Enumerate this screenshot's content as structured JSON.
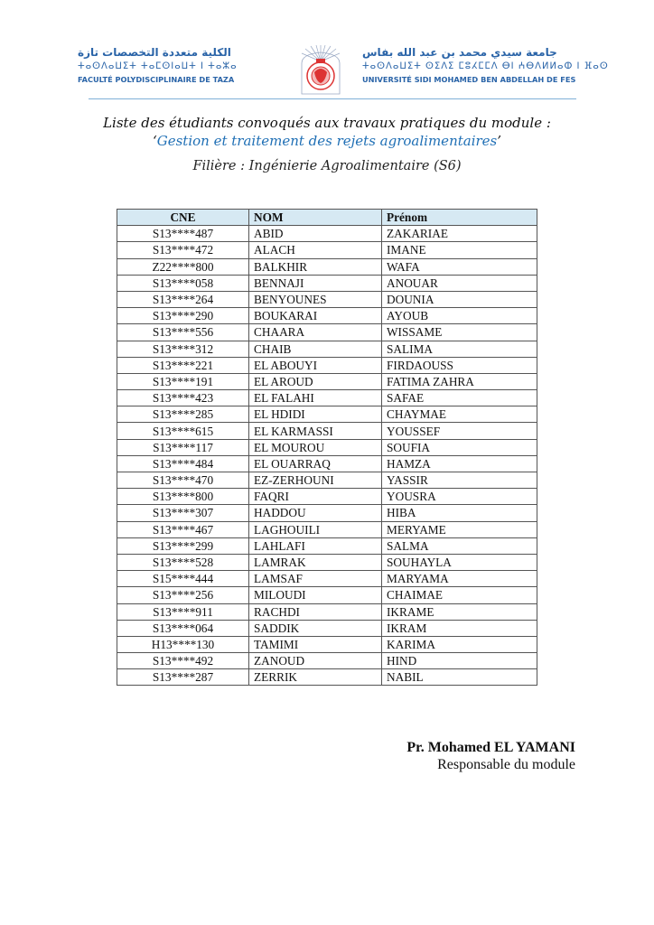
{
  "letterhead": {
    "left_arabic": "الكلية متعددة التخصصات تازة",
    "left_tifinagh": "ⵜⴰⵙⴷⴰⵡⵉⵜ ⵜⴰⵎⵙⵏⴰⵡⵜ ⵏ ⵜⴰⵣⴰ",
    "left_french": "FACULTÉ POLYDISCIPLINAIRE DE TAZA",
    "right_arabic": "جامعة سيدي محمد بن عبد الله بفاس",
    "right_tifinagh": "ⵜⴰⵙⴷⴰⵡⵉⵜ ⵙⵉⴷⵉ ⵎⵓⵃⵎⵎⴷ ⴱⵏ ⵄⴱⴷⵍⵍⴰⵀ ⵏ ⴼⴰⵙ",
    "right_french": "UNIVERSITÉ SIDI MOHAMED BEN ABDELLAH DE FES",
    "accent_color": "#2a64a8"
  },
  "heading": {
    "line1": "Liste des étudiants convoqués aux travaux pratiques du module :",
    "quote_open": "‘",
    "module": "Gestion et traitement des rejets agroalimentaires",
    "quote_close": "’",
    "filiere": "Filière : Ingénierie Agroalimentaire (S6)",
    "module_color": "#1f6fb5"
  },
  "table": {
    "headers": [
      "CNE",
      "NOM",
      "Prénom"
    ],
    "header_bg": "#d6e9f3",
    "rows": [
      [
        "S13****487",
        "ABID",
        "ZAKARIAE"
      ],
      [
        "S13****472",
        "ALACH",
        "IMANE"
      ],
      [
        "Z22****800",
        "BALKHIR",
        "WAFA"
      ],
      [
        "S13****058",
        "BENNAJI",
        "ANOUAR"
      ],
      [
        "S13****264",
        "BENYOUNES",
        "DOUNIA"
      ],
      [
        "S13****290",
        "BOUKARAI",
        "AYOUB"
      ],
      [
        "S13****556",
        "CHAARA",
        "WISSAME"
      ],
      [
        "S13****312",
        "CHAIB",
        "SALIMA"
      ],
      [
        "S13****221",
        "EL ABOUYI",
        "FIRDAOUSS"
      ],
      [
        "S13****191",
        "EL AROUD",
        "FATIMA ZAHRA"
      ],
      [
        "S13****423",
        "EL FALAHI",
        "SAFAE"
      ],
      [
        "S13****285",
        "EL HDIDI",
        "CHAYMAE"
      ],
      [
        "S13****615",
        "EL KARMASSI",
        "YOUSSEF"
      ],
      [
        "S13****117",
        "EL MOUROU",
        "SOUFIA"
      ],
      [
        "S13****484",
        "EL OUARRAQ",
        "HAMZA"
      ],
      [
        "S13****470",
        "EZ-ZERHOUNI",
        "YASSIR"
      ],
      [
        "S13****800",
        "FAQRI",
        "YOUSRA"
      ],
      [
        "S13****307",
        "HADDOU",
        "HIBA"
      ],
      [
        "S13****467",
        "LAGHOUILI",
        "MERYAME"
      ],
      [
        "S13****299",
        "LAHLAFI",
        "SALMA"
      ],
      [
        "S13****528",
        "LAMRAK",
        "SOUHAYLA"
      ],
      [
        "S15****444",
        "LAMSAF",
        "MARYAMA"
      ],
      [
        "S13****256",
        "MILOUDI",
        "CHAIMAE"
      ],
      [
        "S13****911",
        "RACHDI",
        "IKRAME"
      ],
      [
        "S13****064",
        "SADDIK",
        "IKRAM"
      ],
      [
        "H13****130",
        "TAMIMI",
        "KARIMA"
      ],
      [
        "S13****492",
        "ZANOUD",
        "HIND"
      ],
      [
        "S13****287",
        "ZERRIK",
        "NABIL"
      ]
    ]
  },
  "signature": {
    "name": "Pr. Mohamed EL YAMANI",
    "role": "Responsable du module"
  }
}
